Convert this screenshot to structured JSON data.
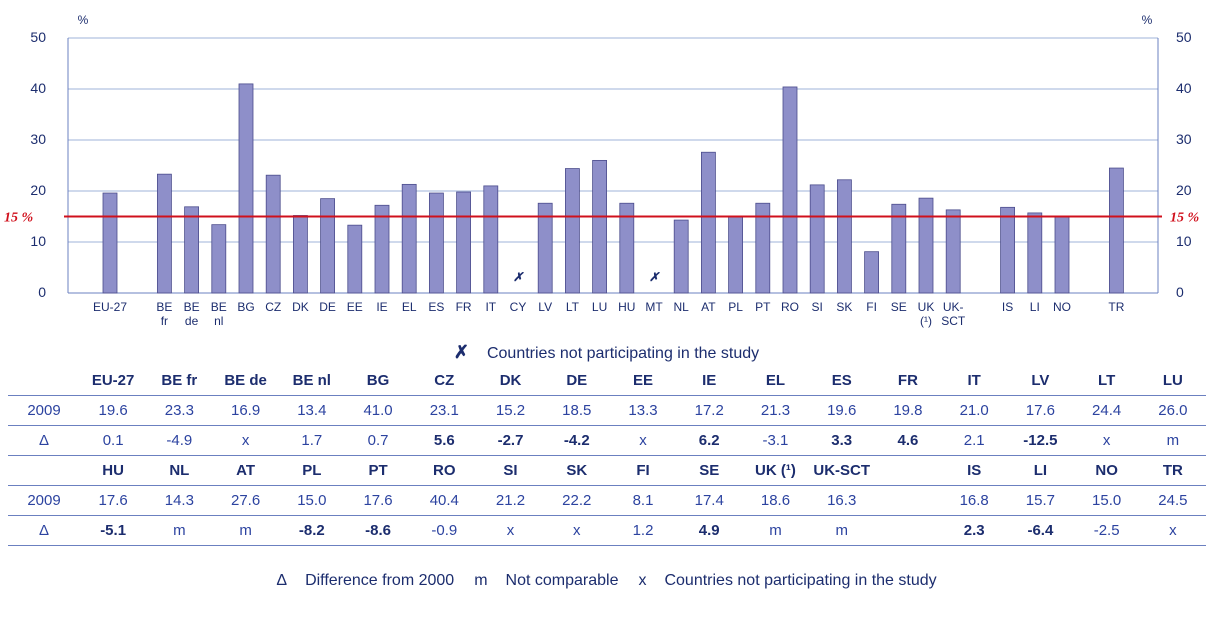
{
  "chart_data": {
    "type": "bar",
    "y_unit_label": "%",
    "categories": [
      "EU-27",
      null,
      "BE\nfr",
      "BE\nde",
      "BE\nnl",
      "BG",
      "CZ",
      "DK",
      "DE",
      "EE",
      "IE",
      "EL",
      "ES",
      "FR",
      "IT",
      "CY",
      "LV",
      "LT",
      "LU",
      "HU",
      "MT",
      "NL",
      "AT",
      "PL",
      "PT",
      "RO",
      "SI",
      "SK",
      "FI",
      "SE",
      "UK\n(¹)",
      "UK-\nSCT",
      null,
      "IS",
      "LI",
      "NO",
      null,
      "TR"
    ],
    "values": [
      19.6,
      null,
      23.3,
      16.9,
      13.4,
      41.0,
      23.1,
      15.2,
      18.5,
      13.3,
      17.2,
      21.3,
      19.6,
      19.8,
      21.0,
      null,
      17.6,
      24.4,
      26.0,
      17.6,
      null,
      14.3,
      27.6,
      15.0,
      17.6,
      40.4,
      21.2,
      22.2,
      8.1,
      17.4,
      18.6,
      16.3,
      null,
      16.8,
      15.7,
      15.0,
      null,
      24.5
    ],
    "value_labels": [
      null,
      null,
      null,
      null,
      null,
      null,
      null,
      null,
      null,
      null,
      null,
      null,
      null,
      null,
      null,
      "✗",
      null,
      null,
      null,
      null,
      "✗",
      null,
      null,
      null,
      null,
      null,
      null,
      null,
      null,
      null,
      null,
      null,
      null,
      null,
      null,
      null,
      null,
      null
    ],
    "color": "#8e8fc9",
    "ylim": [
      0,
      50
    ],
    "yticks": [
      0,
      10,
      20,
      30,
      40,
      50
    ],
    "grid": true,
    "reference_line": {
      "value": 15,
      "label": "15 %",
      "color": "#d0101c"
    },
    "legend": {
      "symbol": "✗",
      "text": "Countries not participating in the study"
    }
  },
  "table": {
    "blocks": [
      {
        "header": [
          "EU-27",
          "BE fr",
          "BE de",
          "BE nl",
          "BG",
          "CZ",
          "DK",
          "DE",
          "EE",
          "IE",
          "EL",
          "ES",
          "FR",
          "IT",
          "LV",
          "LT",
          "LU"
        ],
        "rows": [
          [
            "2009",
            "19.6",
            "23.3",
            "16.9",
            "13.4",
            "41.0",
            "23.1",
            "15.2",
            "18.5",
            "13.3",
            "17.2",
            "21.3",
            "19.6",
            "19.8",
            "21.0",
            "17.6",
            "24.4",
            "26.0"
          ],
          [
            "Δ",
            "0.1",
            "-4.9",
            "x",
            "1.7",
            "0.7",
            "5.6",
            "-2.7",
            "-4.2",
            "x",
            "6.2",
            "-3.1",
            "3.3",
            "4.6",
            "2.1",
            "-12.5",
            "x",
            "m"
          ]
        ],
        "bold_delta_columns": [
          6,
          7,
          8,
          10,
          12,
          13,
          15
        ]
      },
      {
        "header": [
          "HU",
          "NL",
          "AT",
          "PL",
          "PT",
          "RO",
          "SI",
          "SK",
          "FI",
          "SE",
          "UK (¹)",
          "UK-SCT",
          null,
          "IS",
          "LI",
          "NO",
          "TR"
        ],
        "rows": [
          [
            "2009",
            "17.6",
            "14.3",
            "27.6",
            "15.0",
            "17.6",
            "40.4",
            "21.2",
            "22.2",
            "8.1",
            "17.4",
            "18.6",
            "16.3",
            null,
            "16.8",
            "15.7",
            "15.0",
            "24.5"
          ],
          [
            "Δ",
            "-5.1",
            "m",
            "m",
            "-8.2",
            "-8.6",
            "-0.9",
            "x",
            "x",
            "1.2",
            "4.9",
            "m",
            "m",
            null,
            "2.3",
            "-6.4",
            "-2.5",
            "x"
          ]
        ],
        "bold_delta_columns": [
          1,
          4,
          5,
          10,
          14,
          15
        ]
      }
    ]
  },
  "footer_legend": [
    {
      "symbol": "Δ",
      "text": "Difference from 2000"
    },
    {
      "symbol": "m",
      "text": "Not comparable"
    },
    {
      "symbol": "x",
      "text": "Countries not participating in the study"
    }
  ]
}
